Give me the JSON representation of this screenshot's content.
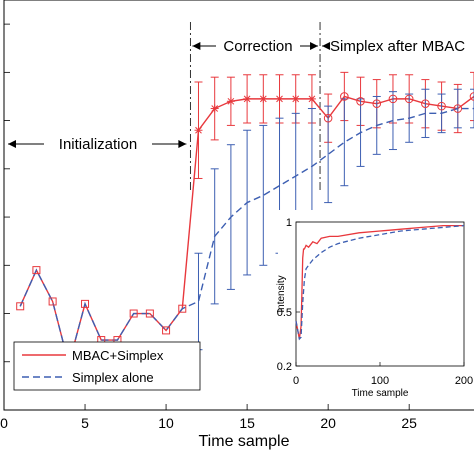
{
  "chart_data": [
    {
      "type": "line",
      "title": "",
      "xlabel": "Time sample",
      "ylabel": "",
      "xlim": [
        0,
        29
      ],
      "ylim": [
        -0.4,
        1.3
      ],
      "xticks": [
        0,
        5,
        10,
        15,
        20,
        25
      ],
      "grid": false,
      "legend": "bottom-left",
      "annotations": [
        {
          "text": "Initialization",
          "x_from": 0,
          "x_to": 11.5
        },
        {
          "text": "Correction",
          "x_from": 11.5,
          "x_to": 19.5
        },
        {
          "text": "Simplex after MBAC",
          "x_from": 19.5,
          "x_to": 29
        }
      ],
      "phase_boundaries": [
        11.5,
        19.5
      ],
      "series": [
        {
          "name": "MBAC+Simplex",
          "color": "#e8383d",
          "style": "solid",
          "x": [
            1,
            2,
            3,
            4,
            5,
            6,
            7,
            8,
            9,
            10,
            11,
            12,
            13,
            14,
            15,
            16,
            17,
            18,
            19,
            20,
            21,
            22,
            23,
            24,
            25,
            26,
            27,
            28,
            29
          ],
          "y": [
            0.03,
            0.18,
            0.05,
            -0.21,
            0.04,
            -0.11,
            -0.11,
            0.0,
            0.0,
            -0.07,
            0.02,
            0.76,
            0.85,
            0.88,
            0.89,
            0.89,
            0.89,
            0.89,
            0.89,
            0.81,
            0.9,
            0.88,
            0.87,
            0.89,
            0.89,
            0.87,
            0.86,
            0.85,
            0.9
          ],
          "error": [
            0,
            0,
            0,
            0,
            0,
            0,
            0,
            0,
            0,
            0,
            0,
            0.2,
            0.13,
            0.1,
            0.1,
            0.1,
            0.1,
            0.1,
            0.1,
            0.1,
            0.1,
            0.1,
            0.1,
            0.1,
            0.1,
            0.1,
            0.1,
            0.1,
            0.1
          ]
        },
        {
          "name": "Simplex alone",
          "color": "#3d5fb2",
          "style": "dashed",
          "x": [
            1,
            2,
            3,
            4,
            5,
            6,
            7,
            8,
            9,
            10,
            11,
            12,
            13,
            14,
            15,
            16,
            17,
            18,
            19,
            20,
            21,
            22,
            23,
            24,
            25,
            26,
            27,
            28,
            29
          ],
          "y": [
            0.03,
            0.18,
            0.05,
            -0.21,
            0.04,
            -0.11,
            -0.11,
            0.0,
            0.0,
            -0.07,
            0.02,
            0.05,
            0.32,
            0.4,
            0.46,
            0.49,
            0.53,
            0.57,
            0.61,
            0.66,
            0.71,
            0.75,
            0.78,
            0.8,
            0.81,
            0.83,
            0.83,
            0.85,
            0.85
          ],
          "error": [
            0,
            0,
            0,
            0,
            0,
            0,
            0,
            0,
            0,
            0,
            0,
            0.2,
            0.28,
            0.3,
            0.3,
            0.29,
            0.28,
            0.26,
            0.24,
            0.2,
            0.18,
            0.14,
            0.12,
            0.12,
            0.1,
            0.1,
            0.08,
            0.08,
            0.08
          ]
        }
      ]
    },
    {
      "type": "line",
      "title": "",
      "xlabel": "Time sample",
      "ylabel": "Intensity",
      "xlim": [
        0,
        200
      ],
      "ylim": [
        0.2,
        1.0
      ],
      "xticks": [
        0,
        100,
        200
      ],
      "yticks": [
        0.2,
        0.5,
        1
      ],
      "ytick_labels": [
        "0.2",
        "0.5",
        "1"
      ],
      "series": [
        {
          "name": "MBAC+Simplex",
          "color": "#e8383d",
          "style": "solid",
          "x": [
            0,
            2,
            4,
            6,
            7,
            8,
            9,
            10,
            12,
            15,
            20,
            25,
            30,
            40,
            50,
            75,
            100,
            125,
            150,
            175,
            200
          ],
          "y": [
            0.45,
            0.4,
            0.35,
            0.42,
            0.6,
            0.8,
            0.85,
            0.85,
            0.87,
            0.86,
            0.89,
            0.88,
            0.91,
            0.92,
            0.92,
            0.94,
            0.95,
            0.96,
            0.97,
            0.98,
            0.98
          ]
        },
        {
          "name": "Simplex alone",
          "color": "#3d5fb2",
          "style": "dashed",
          "x": [
            0,
            2,
            4,
            6,
            8,
            10,
            12,
            15,
            20,
            25,
            30,
            40,
            50,
            75,
            100,
            125,
            150,
            175,
            200
          ],
          "y": [
            0.45,
            0.4,
            0.35,
            0.36,
            0.55,
            0.68,
            0.74,
            0.76,
            0.79,
            0.81,
            0.83,
            0.86,
            0.88,
            0.91,
            0.93,
            0.95,
            0.96,
            0.97,
            0.98
          ]
        }
      ]
    }
  ]
}
